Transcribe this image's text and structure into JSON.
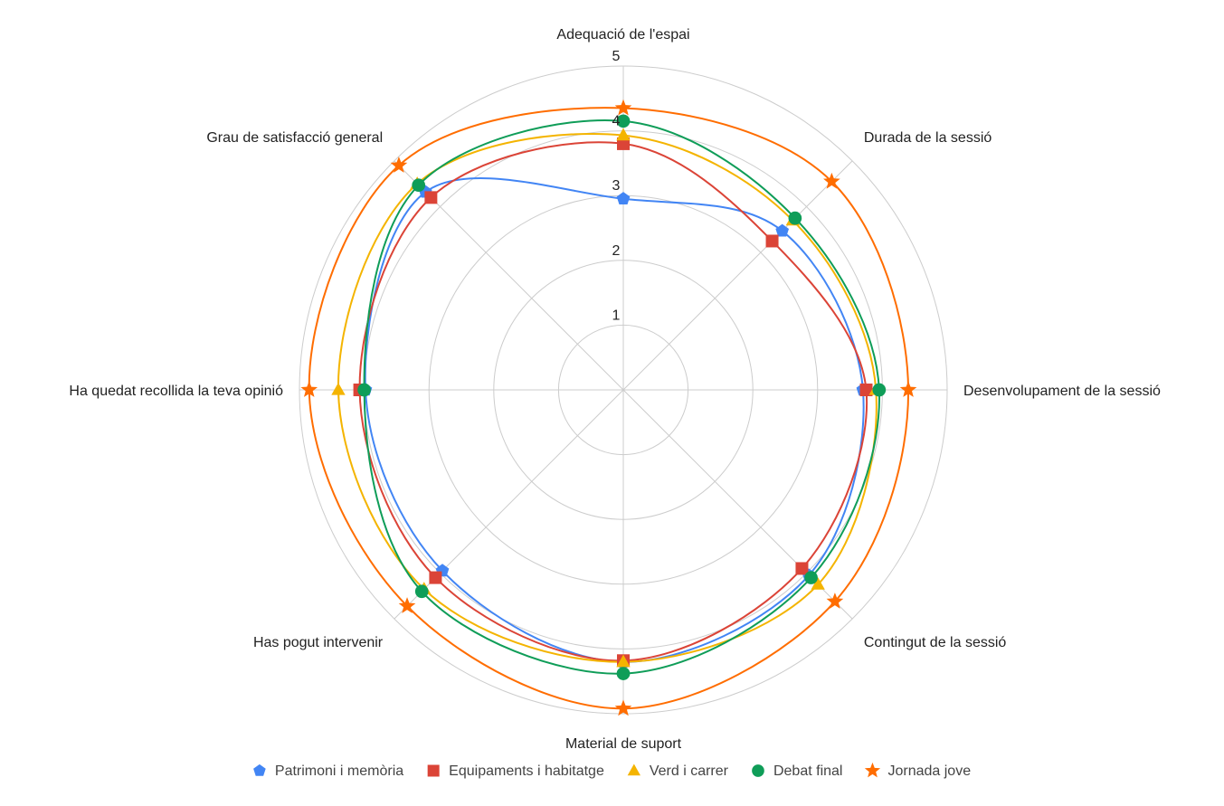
{
  "chart_data": {
    "type": "radar",
    "axes": [
      "Adequació de l'espai",
      "Durada de la sessió",
      "Desenvolupament de la sessió",
      "Contingut de la sessió",
      "Material de suport",
      "Has pogut intervenir",
      "Ha quedat recollida la teva opinió",
      "Grau de satisfacció general"
    ],
    "rlim": [
      1,
      5
    ],
    "ticks": [
      "1",
      "2",
      "3",
      "4",
      "5"
    ],
    "tick_values": [
      1,
      2,
      3,
      4,
      5
    ],
    "grid": true,
    "legend_position": "bottom",
    "series": [
      {
        "name": "Patrimoni i memòria",
        "color": "#4285F4",
        "marker": "pentagon",
        "values": [
          2.95,
          3.47,
          3.7,
          4.05,
          4.2,
          3.95,
          3.98,
          4.32
        ]
      },
      {
        "name": "Equipaments i habitatge",
        "color": "#DB4437",
        "marker": "square",
        "values": [
          3.8,
          3.25,
          3.75,
          3.9,
          4.18,
          4.1,
          4.07,
          4.2
        ]
      },
      {
        "name": "Verd i carrer",
        "color": "#F4B400",
        "marker": "triangle",
        "values": [
          3.93,
          3.7,
          3.9,
          4.25,
          4.2,
          4.35,
          4.4,
          4.5
        ]
      },
      {
        "name": "Debat final",
        "color": "#0F9D58",
        "marker": "circle",
        "values": [
          4.15,
          3.75,
          3.95,
          4.1,
          4.38,
          4.4,
          4.0,
          4.47
        ]
      },
      {
        "name": "Jornada jove",
        "color": "#FF6D00",
        "marker": "star",
        "values": [
          4.35,
          4.55,
          4.4,
          4.62,
          4.92,
          4.72,
          4.85,
          4.9
        ]
      }
    ]
  }
}
